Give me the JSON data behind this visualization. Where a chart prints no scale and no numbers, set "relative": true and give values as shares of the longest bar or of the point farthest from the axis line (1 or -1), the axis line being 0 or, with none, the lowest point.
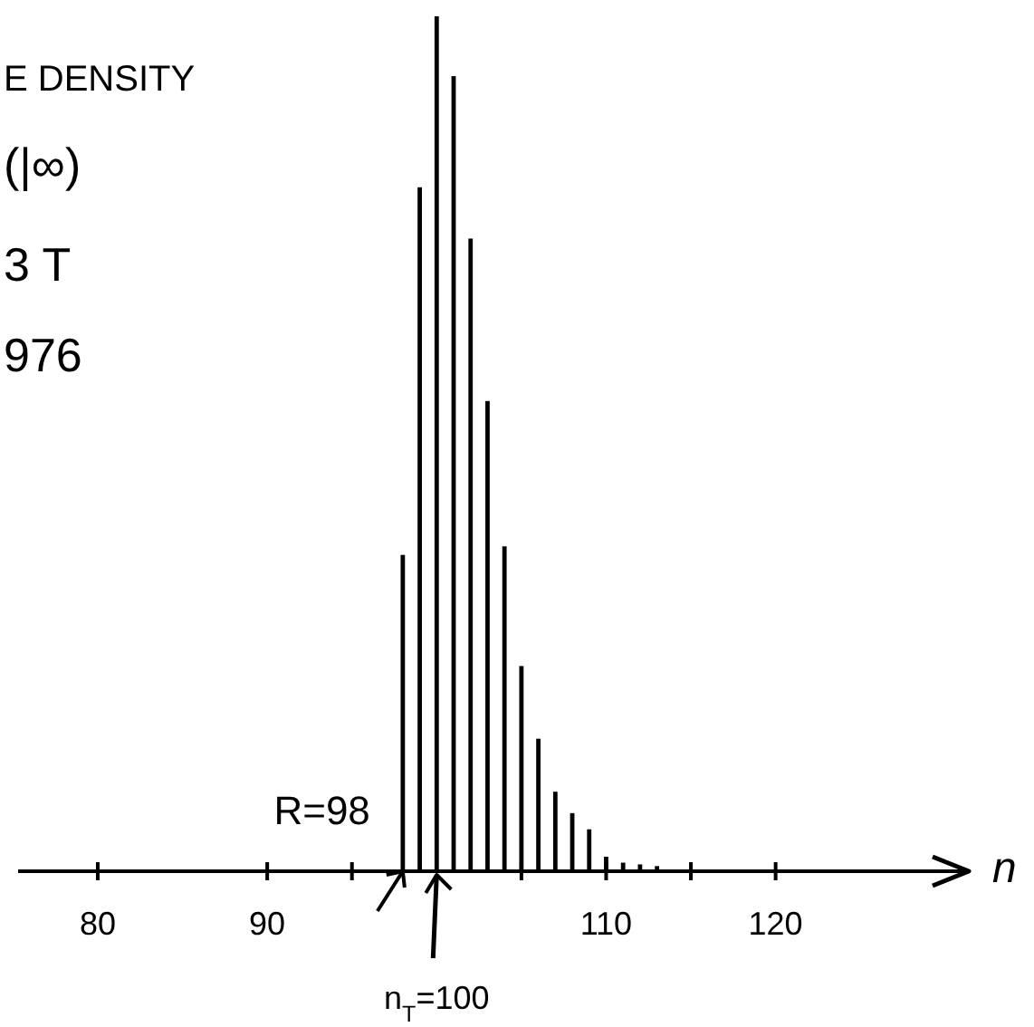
{
  "chart_data": {
    "type": "bar",
    "relative": true,
    "xlabel": "n",
    "color": "#000000",
    "x": [
      98,
      99,
      100,
      101,
      102,
      103,
      104,
      105,
      106,
      107,
      108,
      109,
      110,
      111,
      112,
      113
    ],
    "values": [
      0.37,
      0.8,
      1,
      0.93,
      0.74,
      0.55,
      0.38,
      0.24,
      0.155,
      0.093,
      0.068,
      0.049,
      0.017,
      0.01,
      0.008,
      0.006
    ],
    "xlim": [
      75.3,
      131.4
    ],
    "xticks": [
      80,
      90,
      {
        "value": 95,
        "label": null
      },
      {
        "value": 105,
        "label": null
      },
      110,
      {
        "value": 115,
        "label": null
      },
      120
    ],
    "annotations": [
      "E DENSITY",
      "(|∞)",
      "3 T",
      "976",
      {
        "text": "R=98",
        "x": 98,
        "y": 0
      },
      {
        "text": "n$_{T}$=100",
        "x": 100,
        "y": 0
      }
    ]
  }
}
